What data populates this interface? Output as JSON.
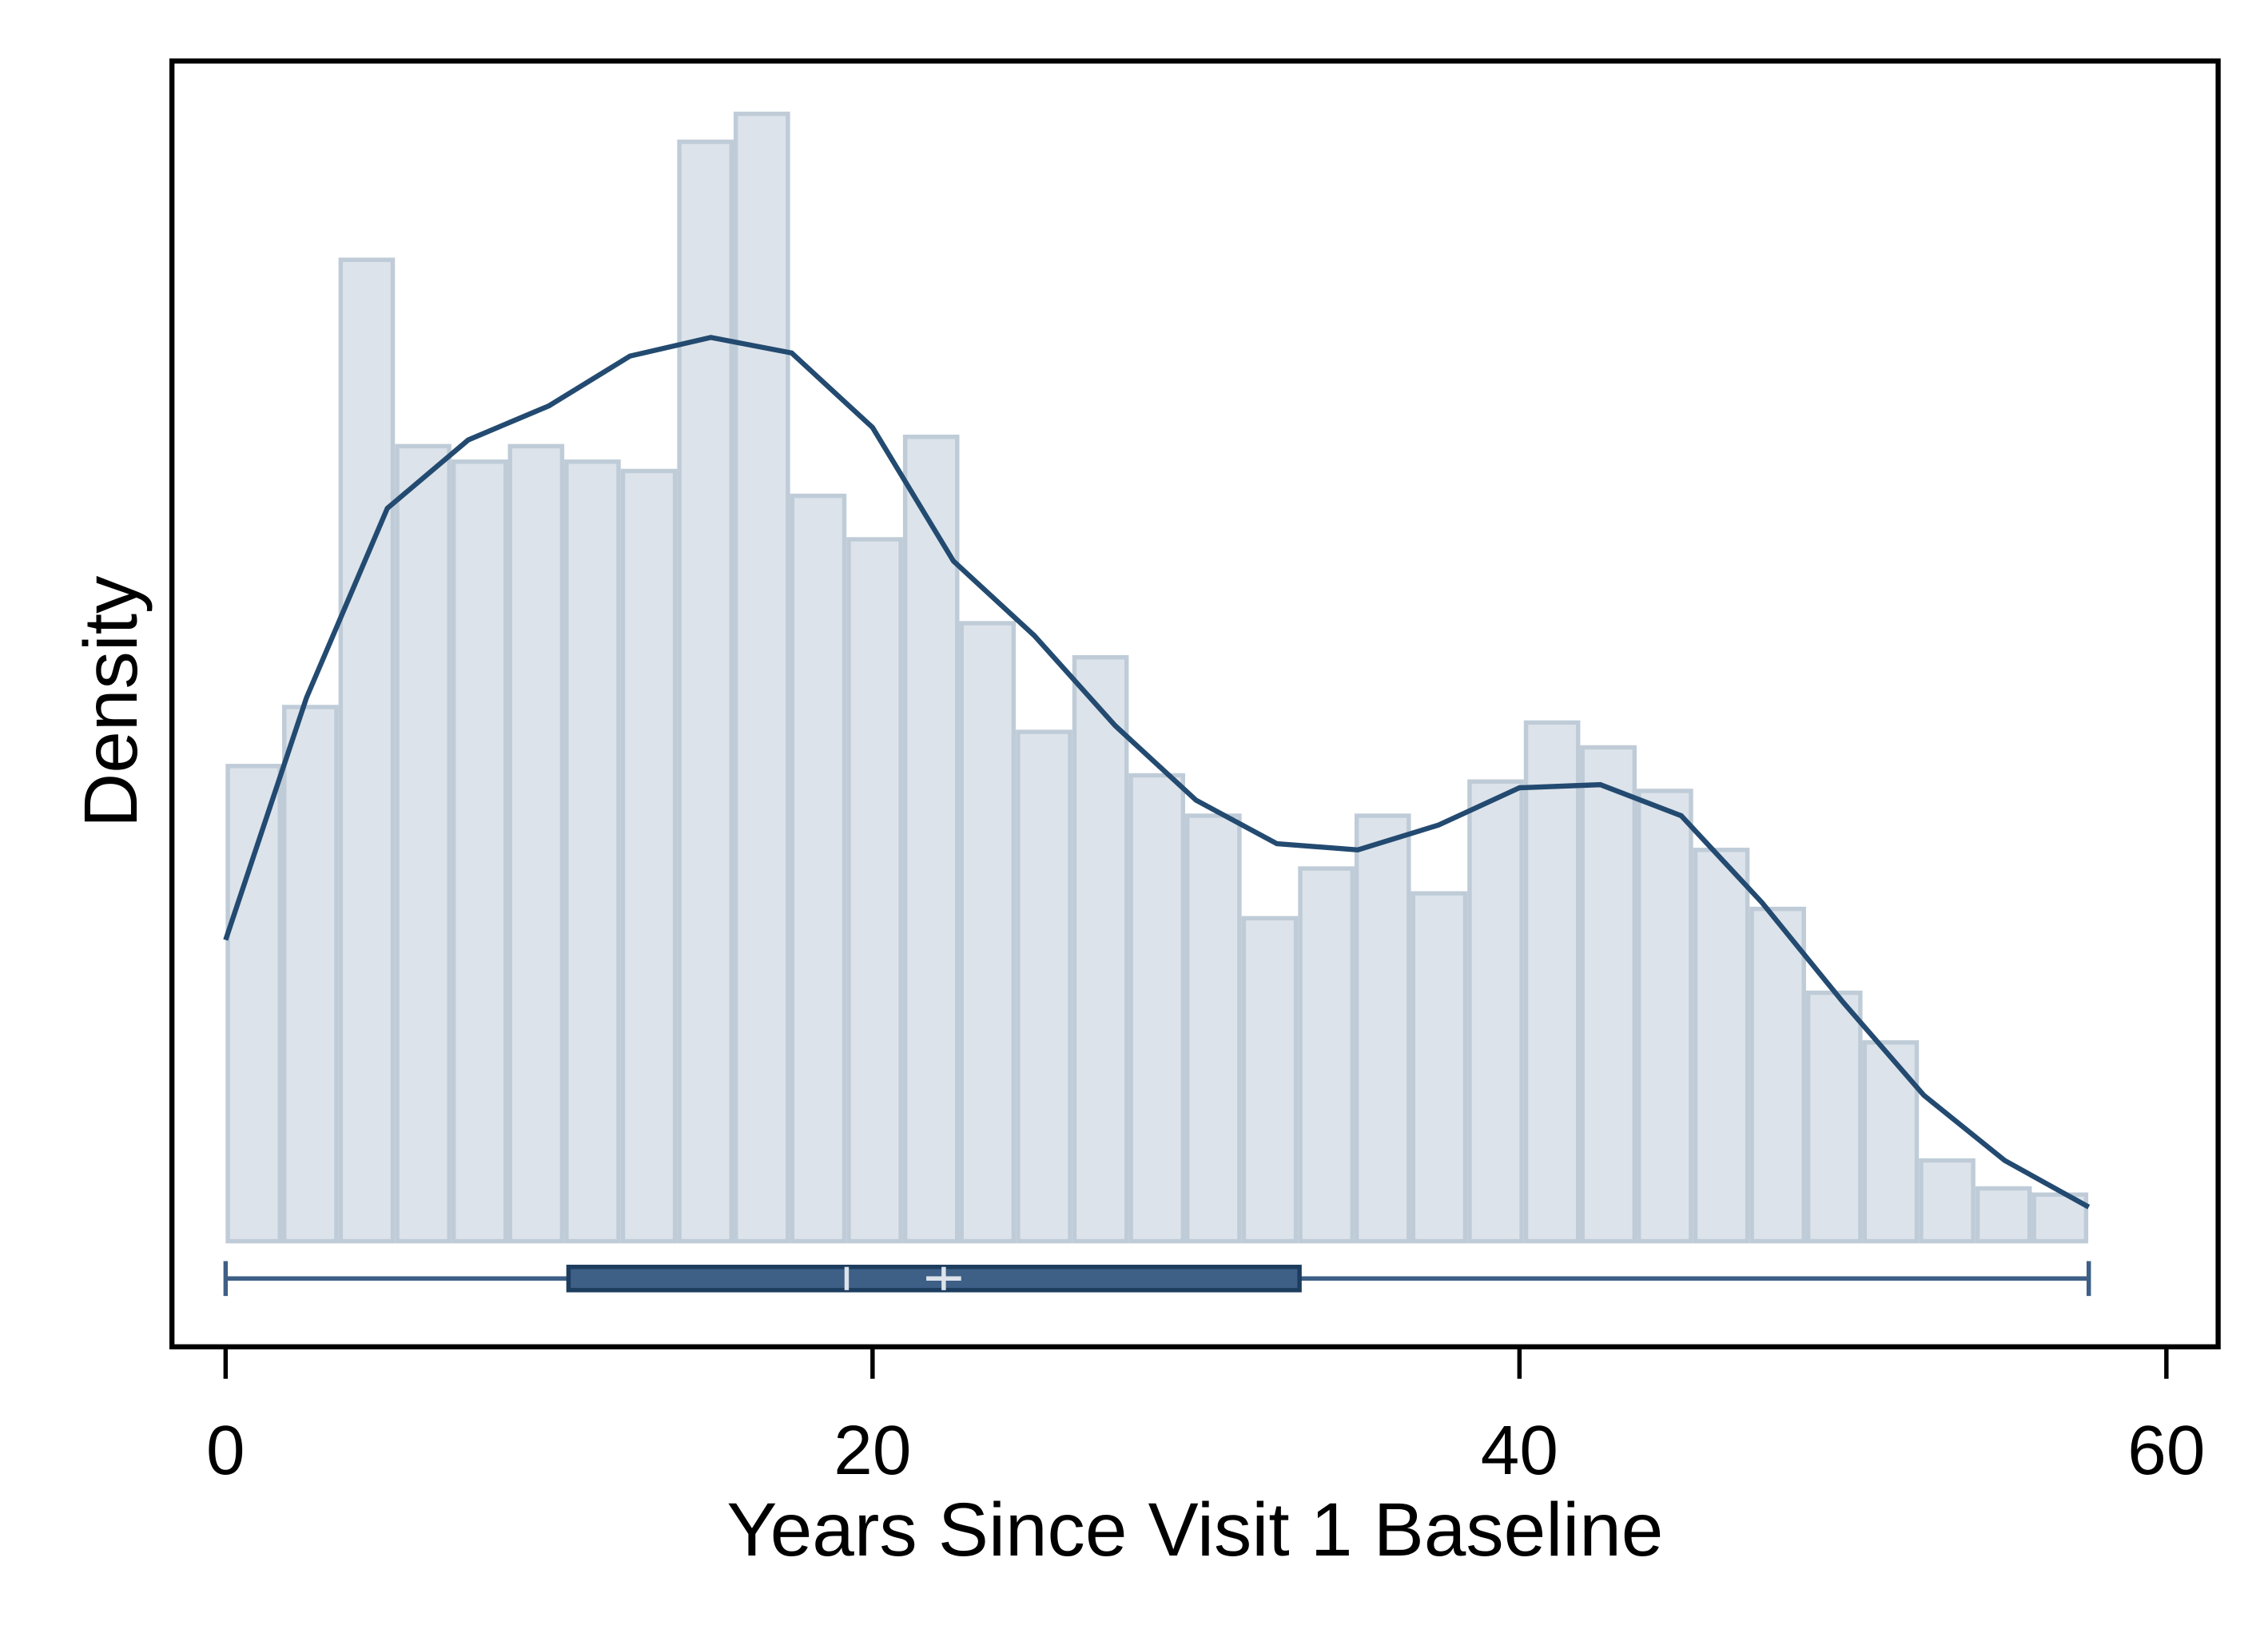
{
  "chart_data": {
    "type": "histogram",
    "x_label": "Years Since Visit 1 Baseline",
    "y_label": "Density",
    "bins": [
      0,
      1.745,
      3.49,
      5.235,
      6.98,
      8.725,
      10.47,
      12.215,
      13.96,
      15.705,
      17.45,
      19.195,
      20.94,
      22.685,
      24.43,
      26.175,
      27.92,
      29.665,
      31.41,
      33.155,
      34.9,
      36.645,
      38.39,
      40.135,
      41.88,
      43.625,
      45.37,
      47.115,
      48.86,
      50.605,
      52.35,
      54.095,
      55.84,
      57.585
    ],
    "values": [
      0.0153,
      0.0172,
      0.0316,
      0.0256,
      0.0251,
      0.0256,
      0.0251,
      0.0248,
      0.0354,
      0.0363,
      0.024,
      0.0226,
      0.0259,
      0.0199,
      0.0164,
      0.0188,
      0.015,
      0.0137,
      0.0104,
      0.012,
      0.0137,
      0.0112,
      0.0148,
      0.0167,
      0.0159,
      0.0145,
      0.0126,
      0.0107,
      0.008,
      0.0064,
      0.0026,
      0.0017,
      0.0015
    ],
    "color": "#dce3ea",
    "edge_color": "#bfccd8",
    "density": {
      "color": "#234a70",
      "x": [
        0,
        2.5,
        5,
        7.5,
        10,
        12.5,
        15,
        17.5,
        20,
        22.5,
        25,
        27.5,
        30,
        32.5,
        35,
        37.5,
        40,
        42.5,
        45,
        47.5,
        50,
        52.5,
        55,
        57.6
      ],
      "values": [
        0.0097,
        0.0175,
        0.0236,
        0.0258,
        0.0269,
        0.0285,
        0.0291,
        0.0286,
        0.0262,
        0.0219,
        0.0195,
        0.0166,
        0.0142,
        0.0128,
        0.0126,
        0.0134,
        0.0146,
        0.0147,
        0.0137,
        0.0109,
        0.0077,
        0.0047,
        0.0026,
        0.0011
      ]
    },
    "boxplot": {
      "color": "#3e5f86",
      "min": 0,
      "q1": 10.6,
      "median": 19.2,
      "q3": 33.2,
      "max": 57.6,
      "mean": 22.2
    },
    "xlim": [
      -1.66,
      61.6
    ],
    "xticks": [
      0,
      20,
      40,
      60
    ],
    "ylim": [
      -0.0034,
      0.038
    ]
  }
}
